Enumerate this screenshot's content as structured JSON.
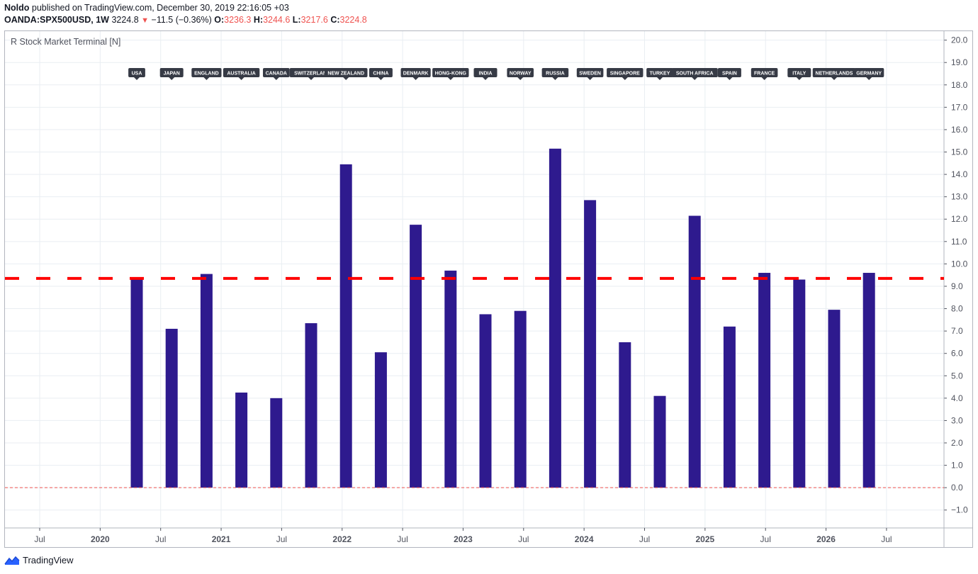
{
  "header": {
    "author": "Noldo",
    "published_text": "published on TradingView.com, December 30, 2019 22:16:05 +03",
    "symbol": "OANDA:SPX500USD, 1W",
    "price": "3224.8",
    "change": "−11.5 (−0.36%)",
    "o_label": "O:",
    "o_value": "3236.3",
    "h_label": "H:",
    "h_value": "3244.6",
    "l_label": "L:",
    "l_value": "3217.6",
    "c_label": "C:",
    "c_value": "3224.8"
  },
  "study_title": "R Stock Market Terminal [N]",
  "footer": {
    "brand": "TradingView"
  },
  "colors": {
    "bar": "#2e1a8e",
    "threshold": "#ff0000",
    "zero_line": "#ef5350",
    "grid": "#e9eef2",
    "label_bg": "#363a45"
  },
  "chart_data": {
    "type": "bar",
    "categories": [
      "USA",
      "JAPAN",
      "ENGLAND",
      "AUSTRALIA",
      "CANADA",
      "SWITZERLAND",
      "NEW ZEALAND",
      "CHINA",
      "DENMARK",
      "HONG-KONG",
      "INDIA",
      "NORWAY",
      "RUSSIA",
      "SWEDEN",
      "SINGAPORE",
      "TURKEY",
      "SOUTH AFRICA",
      "SPAIN",
      "FRANCE",
      "ITALY",
      "NETHERLANDS",
      "GERMANY"
    ],
    "category_labels": [
      "USA",
      "JAPAN",
      "ENGLAND",
      "AUSTRALIA",
      "CANADA",
      "SWITZERLANI",
      "NEW ZEALAND",
      "CHINA",
      "DENMARK",
      "HONG-KONG",
      "INDIA",
      "NORWAY",
      "RUSSIA",
      "SWEDEN",
      "SINGAPORE",
      "TURKEY",
      "SOUTH AFRICA",
      "SPAIN",
      "FRANCE",
      "ITALY",
      "NETHERLANDS",
      "GERMANY"
    ],
    "values": [
      9.4,
      7.1,
      9.55,
      4.25,
      4.0,
      7.35,
      14.45,
      6.05,
      11.75,
      9.7,
      7.75,
      7.9,
      15.15,
      12.85,
      6.5,
      4.1,
      12.15,
      7.2,
      9.6,
      9.3,
      7.95,
      9.6
    ],
    "threshold": 9.35,
    "ylim": [
      -1.8,
      20.4
    ],
    "yticks": [
      "20.0",
      "19.0",
      "18.0",
      "17.0",
      "16.0",
      "15.0",
      "14.0",
      "13.0",
      "12.0",
      "11.0",
      "10.0",
      "9.0",
      "8.0",
      "7.0",
      "6.0",
      "5.0",
      "4.0",
      "3.0",
      "2.0",
      "1.0",
      "0.0",
      "−1.0"
    ],
    "xticks": [
      {
        "label": "Jul",
        "bold": false
      },
      {
        "label": "2020",
        "bold": true
      },
      {
        "label": "Jul",
        "bold": false
      },
      {
        "label": "2021",
        "bold": true
      },
      {
        "label": "Jul",
        "bold": false
      },
      {
        "label": "2022",
        "bold": true
      },
      {
        "label": "Jul",
        "bold": false
      },
      {
        "label": "2023",
        "bold": true
      },
      {
        "label": "Jul",
        "bold": false
      },
      {
        "label": "2024",
        "bold": true
      },
      {
        "label": "Jul",
        "bold": false
      },
      {
        "label": "2025",
        "bold": true
      },
      {
        "label": "Jul",
        "bold": false
      },
      {
        "label": "2026",
        "bold": true
      },
      {
        "label": "Jul",
        "bold": false
      }
    ],
    "grid": true
  }
}
